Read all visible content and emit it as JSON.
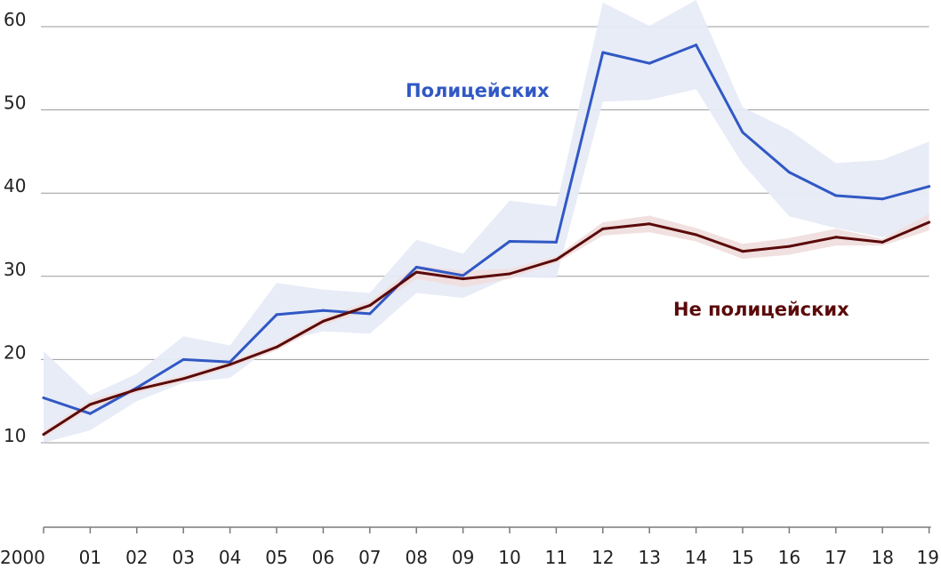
{
  "chart_data": {
    "type": "line",
    "title": "",
    "xlabel": "",
    "ylabel": "",
    "x": [
      "2000",
      "01",
      "02",
      "03",
      "04",
      "05",
      "06",
      "07",
      "08",
      "09",
      "10",
      "11",
      "12",
      "13",
      "14",
      "15",
      "16",
      "17",
      "18",
      "19"
    ],
    "ylim": [
      0,
      63
    ],
    "yticks": [
      10,
      20,
      30,
      40,
      50,
      60
    ],
    "grid": true,
    "colors": {
      "police": "#3158c4",
      "police_band": "#e6ebf7",
      "non_police": "#5a0a0a",
      "non_police_band": "#f0dede",
      "grid": "#9a9a9a",
      "axis": "#7a7a7a"
    },
    "series": [
      {
        "name": "Полицейских",
        "key": "police",
        "values": [
          15.4,
          13.5,
          16.6,
          20.0,
          19.7,
          25.4,
          25.9,
          25.5,
          31.1,
          30.1,
          34.2,
          34.1,
          56.9,
          55.6,
          57.8,
          47.3,
          42.5,
          39.7,
          39.3,
          40.8
        ],
        "lower": [
          10.0,
          11.5,
          15.0,
          17.2,
          17.8,
          22.0,
          23.4,
          23.1,
          28.0,
          27.4,
          29.9,
          29.8,
          51.0,
          51.2,
          52.5,
          43.5,
          37.2,
          35.8,
          34.7,
          35.8
        ],
        "upper": [
          21.0,
          15.7,
          18.3,
          22.8,
          21.7,
          29.2,
          28.4,
          28.0,
          34.4,
          32.7,
          39.1,
          38.4,
          62.9,
          60.1,
          63.2,
          50.3,
          47.6,
          43.6,
          44.0,
          46.2
        ]
      },
      {
        "name": "Не полицейских",
        "key": "non_police",
        "values": [
          11.0,
          14.6,
          16.4,
          17.7,
          19.4,
          21.5,
          24.6,
          26.5,
          30.5,
          29.7,
          30.3,
          32.0,
          35.7,
          36.3,
          35.0,
          33.0,
          33.6,
          34.7,
          34.1,
          36.5
        ],
        "lower": [
          10.6,
          14.1,
          16.0,
          17.3,
          19.0,
          21.1,
          24.1,
          26.0,
          29.7,
          28.7,
          29.7,
          31.6,
          34.9,
          35.3,
          34.2,
          32.1,
          32.6,
          33.7,
          33.7,
          35.5
        ],
        "upper": [
          11.4,
          15.1,
          16.8,
          18.1,
          19.8,
          21.9,
          25.1,
          27.0,
          31.3,
          30.7,
          30.9,
          32.4,
          36.5,
          37.3,
          35.8,
          33.9,
          34.6,
          35.7,
          34.5,
          37.5
        ]
      }
    ]
  }
}
